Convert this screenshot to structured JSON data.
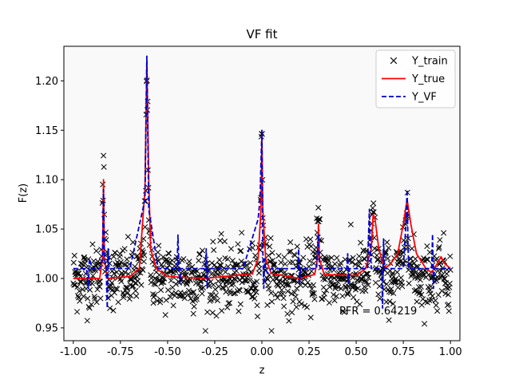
{
  "chart_data": {
    "type": "line",
    "title": "VF fit",
    "xlabel": "z",
    "ylabel": "F(z)",
    "xlim": [
      -1.05,
      1.05
    ],
    "ylim": [
      0.937,
      1.235
    ],
    "xticks": [
      "-1.00",
      "-0.75",
      "-0.50",
      "-0.25",
      "0.00",
      "0.25",
      "0.50",
      "0.75",
      "1.00"
    ],
    "xtick_values": [
      -1.0,
      -0.75,
      -0.5,
      -0.25,
      0.0,
      0.25,
      0.5,
      0.75,
      1.0
    ],
    "yticks": [
      "0.95",
      "1.00",
      "1.05",
      "1.10",
      "1.15",
      "1.20"
    ],
    "ytick_values": [
      0.95,
      1.0,
      1.05,
      1.1,
      1.15,
      1.2
    ],
    "grid": false,
    "legend_position": "top-right",
    "annotation": "PFR = 0.64219",
    "series": [
      {
        "name": "Y_train",
        "style": "markers",
        "marker": "x",
        "color": "#000000",
        "baseline": 1.0,
        "noise_amplitude": 0.022,
        "count": 1000
      },
      {
        "name": "Y_true",
        "style": "solid",
        "color": "#ff0000",
        "baseline": 1.0,
        "x": [
          -1.0,
          -0.86,
          -0.845,
          -0.84,
          -0.835,
          -0.82,
          -0.7,
          -0.65,
          -0.62,
          -0.61,
          -0.6,
          -0.59,
          -0.56,
          -0.5,
          -0.3,
          -0.05,
          -0.02,
          -0.005,
          0.0,
          0.005,
          0.02,
          0.05,
          0.2,
          0.28,
          0.295,
          0.3,
          0.305,
          0.33,
          0.5,
          0.55,
          0.58,
          0.59,
          0.6,
          0.62,
          0.65,
          0.68,
          0.72,
          0.75,
          0.77,
          0.79,
          0.82,
          0.87,
          0.9,
          0.93,
          0.95,
          0.97,
          1.0
        ],
        "y": [
          1.0,
          1.0,
          1.02,
          1.1,
          1.02,
          1.0,
          1.002,
          1.01,
          1.09,
          1.22,
          1.1,
          1.03,
          1.01,
          1.002,
          1.0,
          1.005,
          1.02,
          1.07,
          1.145,
          1.07,
          1.02,
          1.005,
          1.0,
          1.004,
          1.02,
          1.055,
          1.02,
          1.004,
          1.003,
          1.01,
          1.03,
          1.065,
          1.06,
          1.03,
          1.01,
          1.014,
          1.025,
          1.055,
          1.08,
          1.055,
          1.025,
          1.01,
          1.006,
          1.015,
          1.022,
          1.015,
          1.01
        ]
      },
      {
        "name": "Y_VF",
        "style": "dashed",
        "color": "#0000cc",
        "baseline": 1.01,
        "x": [
          -1.0,
          -0.93,
          -0.925,
          -0.92,
          -0.915,
          -0.9,
          -0.86,
          -0.845,
          -0.84,
          -0.835,
          -0.825,
          -0.82,
          -0.815,
          -0.81,
          -0.7,
          -0.62,
          -0.61,
          -0.6,
          -0.55,
          -0.45,
          -0.445,
          -0.44,
          -0.435,
          -0.43,
          -0.3,
          -0.295,
          -0.29,
          -0.285,
          -0.1,
          -0.02,
          -0.01,
          0.0,
          0.005,
          0.01,
          0.015,
          0.02,
          0.03,
          0.05,
          0.19,
          0.195,
          0.2,
          0.205,
          0.29,
          0.3,
          0.305,
          0.31,
          0.45,
          0.455,
          0.46,
          0.465,
          0.56,
          0.57,
          0.575,
          0.58,
          0.635,
          0.64,
          0.645,
          0.65,
          0.75,
          0.765,
          0.77,
          0.775,
          0.78,
          0.9,
          0.905,
          0.91,
          0.915,
          1.0
        ],
        "y": [
          1.01,
          1.01,
          1.0,
          0.99,
          1.02,
          1.01,
          1.01,
          1.02,
          1.09,
          1.02,
          1.01,
          0.97,
          1.03,
          1.01,
          1.01,
          1.08,
          1.225,
          1.07,
          1.01,
          1.01,
          1.044,
          1.01,
          0.995,
          1.01,
          1.01,
          1.03,
          0.99,
          1.01,
          1.01,
          1.06,
          1.08,
          1.15,
          1.03,
          0.99,
          1.02,
          1.01,
          1.005,
          1.01,
          1.01,
          1.03,
          0.995,
          1.01,
          1.01,
          1.045,
          1.015,
          1.01,
          1.01,
          1.025,
          0.995,
          1.01,
          1.01,
          1.07,
          1.03,
          1.01,
          1.01,
          0.97,
          1.04,
          1.01,
          1.01,
          1.06,
          1.09,
          1.03,
          1.01,
          1.01,
          1.045,
          0.99,
          1.01,
          1.01
        ]
      }
    ]
  }
}
